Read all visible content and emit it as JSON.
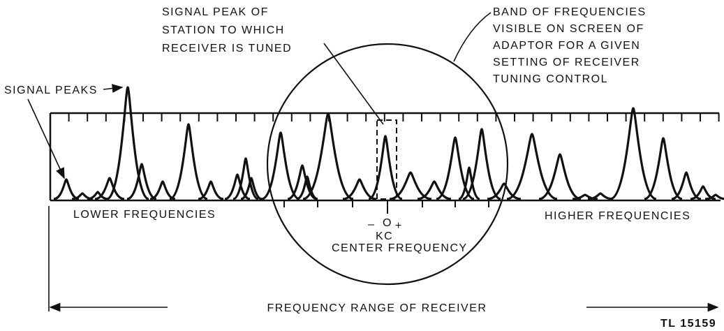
{
  "annotations": {
    "tuned_station": [
      "SIGNAL PEAK OF",
      "STATION TO WHICH",
      "RECEIVER IS TUNED"
    ],
    "band": [
      "BAND OF FREQUENCIES",
      "VISIBLE ON SCREEN OF",
      "ADAPTOR FOR A GIVEN",
      "SETTING OF RECEIVER",
      "TUNING CONTROL"
    ],
    "signal_peaks": "SIGNAL PEAKS"
  },
  "scale": {
    "lower": "LOWER FREQUENCIES",
    "higher": "HIGHER FREQUENCIES",
    "center": {
      "minus": "–",
      "zero": "O",
      "plus": "+",
      "unit": "KC",
      "label": "CENTER FREQUENCY"
    }
  },
  "range_label": "FREQUENCY RANGE OF RECEIVER",
  "figure_id": "TL 15159"
}
